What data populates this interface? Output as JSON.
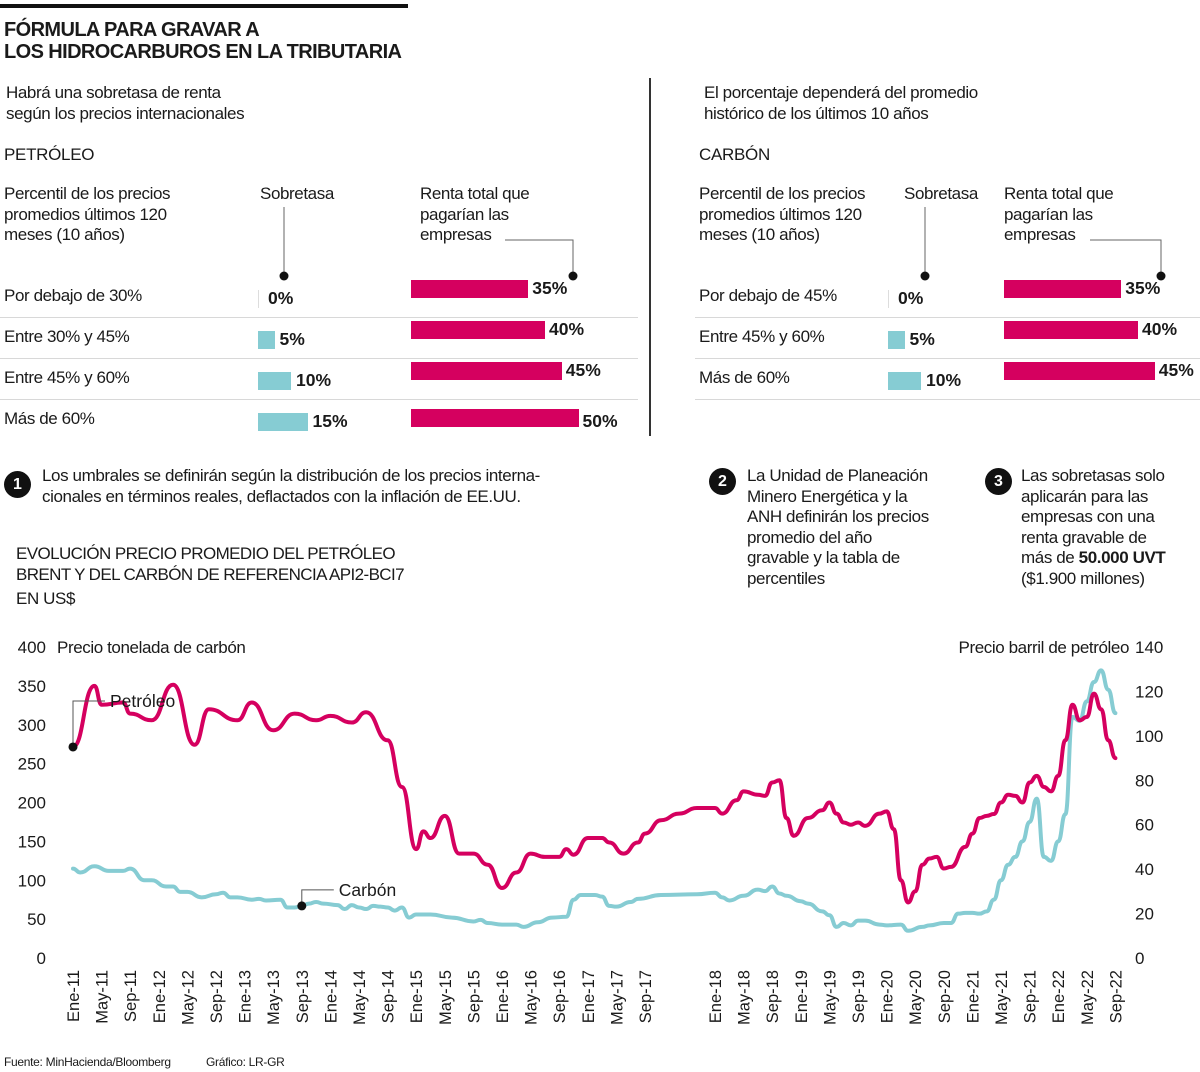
{
  "header": {
    "title": "FÓRMULA PARA GRAVAR A\nLOS HIDROCARBUROS EN LA TRIBUTARIA"
  },
  "petroleo": {
    "intro": "Habrá una sobretasa de renta\nsegún los precios internacionales",
    "section": "PETRÓLEO",
    "col_percentil": "Percentil de los precios\npromedios últimos 120\nmeses (10 años)",
    "col_sobretasa": "Sobretasa",
    "col_renta": "Renta total que\npagarían las\nempresas",
    "rows": [
      {
        "label": "Por debajo de 30%",
        "sobretasa": 0,
        "sobretasa_label": "0%",
        "renta": 35,
        "renta_label": "35%"
      },
      {
        "label": "Entre 30% y 45%",
        "sobretasa": 5,
        "sobretasa_label": "5%",
        "renta": 40,
        "renta_label": "40%"
      },
      {
        "label": "Entre 45% y 60%",
        "sobretasa": 10,
        "sobretasa_label": "10%",
        "renta": 45,
        "renta_label": "45%"
      },
      {
        "label": "Más de 60%",
        "sobretasa": 15,
        "sobretasa_label": "15%",
        "renta": 50,
        "renta_label": "50%"
      }
    ]
  },
  "carbon": {
    "intro": "El porcentaje dependerá del promedio\nhistórico de los últimos 10 años",
    "section": "CARBÓN",
    "col_percentil": "Percentil de los precios\npromedios últimos 120\nmeses (10 años)",
    "col_sobretasa": "Sobretasa",
    "col_renta": "Renta total que\npagarían las\nempresas",
    "rows": [
      {
        "label": "Por debajo de 45%",
        "sobretasa": 0,
        "sobretasa_label": "0%",
        "renta": 35,
        "renta_label": "35%"
      },
      {
        "label": "Entre 45% y 60%",
        "sobretasa": 5,
        "sobretasa_label": "5%",
        "renta": 40,
        "renta_label": "40%"
      },
      {
        "label": "Más de 60%",
        "sobretasa": 10,
        "sobretasa_label": "10%",
        "renta": 45,
        "renta_label": "45%"
      }
    ]
  },
  "notes": [
    {
      "number": "1",
      "text": "Los umbrales se definirán según la distribución de los precios interna-\ncionales en términos reales, deflactados con la inflación de EE.UU."
    },
    {
      "number": "2",
      "text": "La Unidad de Planeación\nMinero Energética y la\nANH definirán los precios\npromedio del año\ngravable y la tabla de\npercentiles"
    },
    {
      "number": "3",
      "text_before": "Las sobretasas solo\naplicarán para las\nempresas con una\nrenta gravable de\nmás de ",
      "text_bold": "50.000 UVT",
      "text_after": "\n($1.900 millones)"
    }
  ],
  "colors": {
    "petroleo": "#d5005f",
    "carbon": "#86ccd3",
    "text": "#1a1a1a"
  },
  "footer": {
    "source": "Fuente: MinHacienda/Bloomberg",
    "credit": "Gráfico: LR-GR"
  },
  "chart_data": {
    "type": "line",
    "title": "EVOLUCIÓN PRECIO PROMEDIO DEL PETRÓLEO\nBRENT Y DEL CARBÓN DE REFERENCIA API2-BCI7",
    "subtitle": "EN US$",
    "ylabel_left": "Precio tonelada de carbón",
    "ylabel_right": "Precio barril de petróleo",
    "ylim_left": [
      0,
      400
    ],
    "ylim_right": [
      0,
      140
    ],
    "yticks_left": [
      "0",
      "50",
      "100",
      "150",
      "200",
      "250",
      "300",
      "350",
      "400"
    ],
    "yticks_right": [
      "0",
      "20",
      "40",
      "60",
      "80",
      "100",
      "120",
      "140"
    ],
    "xticks": [
      "Ene-11",
      "May-11",
      "Sep-11",
      "Ene-12",
      "May-12",
      "Sep-12",
      "Ene-13",
      "May-13",
      "Sep-13",
      "Ene-14",
      "May-14",
      "Sep-14",
      "Ene-15",
      "May-15",
      "Sep-15",
      "Ene-16",
      "May-16",
      "Sep-16",
      "Ene-17",
      "May-17",
      "Sep-17",
      "Ene-18",
      "May-18",
      "Sep-18",
      "Ene-19",
      "May-19",
      "Sep-19",
      "Ene-20",
      "May-20",
      "Sep-20",
      "Ene-21",
      "May-21",
      "Sep-21",
      "Ene-22",
      "May-22",
      "Sep-22"
    ],
    "grid": false,
    "series": [
      {
        "name": "Petróleo",
        "axis": "right",
        "color": "#d5005f",
        "label_at": "2015-04",
        "points": [
          [
            "2011-01",
            95
          ],
          [
            "2011-04",
            122.5
          ],
          [
            "2011-05",
            114
          ],
          [
            "2011-08",
            115
          ],
          [
            "2011-09",
            110
          ],
          [
            "2011-12",
            107
          ],
          [
            "2012-03",
            123
          ],
          [
            "2012-06",
            96
          ],
          [
            "2012-08",
            112
          ],
          [
            "2012-12",
            107
          ],
          [
            "2013-02",
            115
          ],
          [
            "2013-05",
            102.5
          ],
          [
            "2013-08",
            110
          ],
          [
            "2013-11",
            107
          ],
          [
            "2014-01",
            109
          ],
          [
            "2014-04",
            106
          ],
          [
            "2014-06",
            110.6
          ],
          [
            "2014-09",
            98
          ],
          [
            "2014-11",
            77
          ],
          [
            "2015-01",
            49
          ],
          [
            "2015-02",
            57
          ],
          [
            "2015-03",
            54
          ],
          [
            "2015-05",
            64
          ],
          [
            "2015-07",
            47
          ],
          [
            "2015-09",
            47
          ],
          [
            "2015-11",
            42
          ],
          [
            "2016-01",
            31.5
          ],
          [
            "2016-03",
            38.5
          ],
          [
            "2016-05",
            47
          ],
          [
            "2016-07",
            45.5
          ],
          [
            "2016-09",
            45.5
          ],
          [
            "2016-10",
            49
          ],
          [
            "2016-11",
            46.5
          ],
          [
            "2017-01",
            54
          ],
          [
            "2017-03",
            54
          ],
          [
            "2017-04",
            52
          ],
          [
            "2017-06",
            47
          ],
          [
            "2017-08",
            52
          ],
          [
            "2017-09",
            56
          ],
          [
            "2017-10",
            62
          ],
          [
            "2017-11",
            65
          ],
          [
            "2017-12",
            67.5
          ],
          [
            "2018-01",
            67.5
          ],
          [
            "2018-02",
            65
          ],
          [
            "2018-04",
            71
          ],
          [
            "2018-05",
            75
          ],
          [
            "2018-07",
            73.5
          ],
          [
            "2018-08",
            73
          ],
          [
            "2018-09",
            79
          ],
          [
            "2018-10",
            80
          ],
          [
            "2018-11",
            63
          ],
          [
            "2018-12",
            55
          ],
          [
            "2019-02",
            63
          ],
          [
            "2019-04",
            66.5
          ],
          [
            "2019-05",
            70
          ],
          [
            "2019-06",
            65
          ],
          [
            "2019-07",
            61
          ],
          [
            "2019-08",
            60
          ],
          [
            "2019-09",
            61
          ],
          [
            "2019-10",
            59.5
          ],
          [
            "2019-12",
            65
          ],
          [
            "2020-01",
            66
          ],
          [
            "2020-02",
            58
          ],
          [
            "2020-03",
            35
          ],
          [
            "2020-04",
            25
          ],
          [
            "2020-05",
            30
          ],
          [
            "2020-06",
            42
          ],
          [
            "2020-07",
            44.8
          ],
          [
            "2020-08",
            45.5
          ],
          [
            "2020-09",
            40.3
          ],
          [
            "2020-10",
            41
          ],
          [
            "2020-12",
            50
          ],
          [
            "2021-01",
            56
          ],
          [
            "2021-02",
            63
          ],
          [
            "2021-03",
            64
          ],
          [
            "2021-04",
            64.8
          ],
          [
            "2021-05",
            70
          ],
          [
            "2021-06",
            73.5
          ],
          [
            "2021-07",
            73
          ],
          [
            "2021-08",
            70
          ],
          [
            "2021-09",
            79
          ],
          [
            "2021-10",
            82
          ],
          [
            "2021-11",
            77
          ],
          [
            "2021-12",
            75
          ],
          [
            "2022-01",
            82
          ],
          [
            "2022-02",
            98
          ],
          [
            "2022-03",
            114
          ],
          [
            "2022-04",
            107
          ],
          [
            "2022-05",
            108.5
          ],
          [
            "2022-06",
            119
          ],
          [
            "2022-07",
            112
          ],
          [
            "2022-08",
            98
          ],
          [
            "2022-09",
            90
          ]
        ]
      },
      {
        "name": "Carbón",
        "axis": "left",
        "color": "#86ccd3",
        "label_at": "2013-09",
        "points": [
          [
            "2011-01",
            115
          ],
          [
            "2011-02",
            110
          ],
          [
            "2011-04",
            118
          ],
          [
            "2011-06",
            112
          ],
          [
            "2011-08",
            112
          ],
          [
            "2011-09",
            115
          ],
          [
            "2011-11",
            100
          ],
          [
            "2011-12",
            100
          ],
          [
            "2012-02",
            92
          ],
          [
            "2012-03",
            92
          ],
          [
            "2012-04",
            85
          ],
          [
            "2012-05",
            85
          ],
          [
            "2012-07",
            78
          ],
          [
            "2012-09",
            82
          ],
          [
            "2012-10",
            84
          ],
          [
            "2012-11",
            78
          ],
          [
            "2012-12",
            78
          ],
          [
            "2013-02",
            75
          ],
          [
            "2013-03",
            76
          ],
          [
            "2013-04",
            74
          ],
          [
            "2013-06",
            75
          ],
          [
            "2013-07",
            65
          ],
          [
            "2013-08",
            65
          ],
          [
            "2013-09",
            67
          ],
          [
            "2013-10",
            70
          ],
          [
            "2013-11",
            72
          ],
          [
            "2013-12",
            70
          ],
          [
            "2014-02",
            68
          ],
          [
            "2014-03",
            63
          ],
          [
            "2014-04",
            68
          ],
          [
            "2014-05",
            65
          ],
          [
            "2014-06",
            63
          ],
          [
            "2014-07",
            67
          ],
          [
            "2014-08",
            66
          ],
          [
            "2014-09",
            65
          ],
          [
            "2014-10",
            61
          ],
          [
            "2014-11",
            65
          ],
          [
            "2014-12",
            52
          ],
          [
            "2015-01",
            56
          ],
          [
            "2015-03",
            56
          ],
          [
            "2015-06",
            52
          ],
          [
            "2015-09",
            47
          ],
          [
            "2015-10",
            49
          ],
          [
            "2015-11",
            45
          ],
          [
            "2016-01",
            43
          ],
          [
            "2016-03",
            43
          ],
          [
            "2016-04",
            40
          ],
          [
            "2016-06",
            46
          ],
          [
            "2016-08",
            52
          ],
          [
            "2016-10",
            53
          ],
          [
            "2016-11",
            75
          ],
          [
            "2016-12",
            81
          ],
          [
            "2017-02",
            81
          ],
          [
            "2017-03",
            79
          ],
          [
            "2017-04",
            67
          ],
          [
            "2017-05",
            66
          ],
          [
            "2017-07",
            72
          ],
          [
            "2017-08",
            76
          ],
          [
            "2017-10",
            81
          ],
          [
            "2017-12",
            82
          ],
          [
            "2018-01",
            84
          ],
          [
            "2018-02",
            78
          ],
          [
            "2018-03",
            74
          ],
          [
            "2018-05",
            80
          ],
          [
            "2018-07",
            88
          ],
          [
            "2018-08",
            86
          ],
          [
            "2018-09",
            92
          ],
          [
            "2018-10",
            83
          ],
          [
            "2018-11",
            80
          ],
          [
            "2019-01",
            73
          ],
          [
            "2019-02",
            70
          ],
          [
            "2019-04",
            60
          ],
          [
            "2019-05",
            55
          ],
          [
            "2019-06",
            40
          ],
          [
            "2019-07",
            45
          ],
          [
            "2019-08",
            42
          ],
          [
            "2019-09",
            48
          ],
          [
            "2019-10",
            48
          ],
          [
            "2019-12",
            43
          ],
          [
            "2020-01",
            42
          ],
          [
            "2020-03",
            43
          ],
          [
            "2020-04",
            35
          ],
          [
            "2020-06",
            40
          ],
          [
            "2020-07",
            42
          ],
          [
            "2020-09",
            45
          ],
          [
            "2020-10",
            45
          ],
          [
            "2020-11",
            57
          ],
          [
            "2020-12",
            58
          ],
          [
            "2021-01",
            58
          ],
          [
            "2021-02",
            57
          ],
          [
            "2021-03",
            60
          ],
          [
            "2021-04",
            75
          ],
          [
            "2021-05",
            100
          ],
          [
            "2021-06",
            120
          ],
          [
            "2021-07",
            130
          ],
          [
            "2021-08",
            150
          ],
          [
            "2021-09",
            175
          ],
          [
            "2021-10",
            205
          ],
          [
            "2021-11",
            130
          ],
          [
            "2021-12",
            125
          ],
          [
            "2022-01",
            150
          ],
          [
            "2022-02",
            185
          ],
          [
            "2022-03",
            310
          ],
          [
            "2022-04",
            305
          ],
          [
            "2022-05",
            330
          ],
          [
            "2022-06",
            355
          ],
          [
            "2022-07",
            370
          ],
          [
            "2022-08",
            345
          ],
          [
            "2022-09",
            315
          ]
        ]
      }
    ]
  }
}
